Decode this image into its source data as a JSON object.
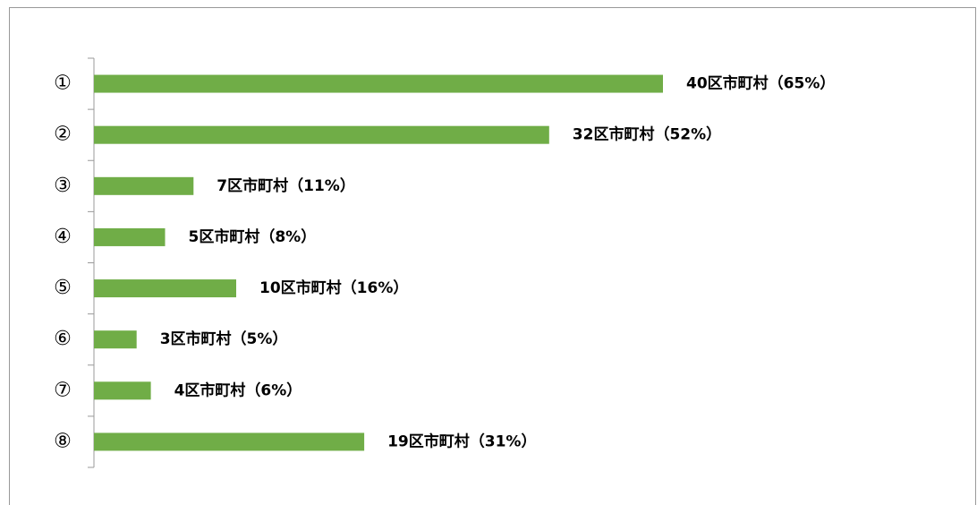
{
  "chart_data": {
    "type": "bar",
    "orientation": "horizontal",
    "categories": [
      "①",
      "②",
      "③",
      "④",
      "⑤",
      "⑥",
      "⑦",
      "⑧"
    ],
    "values": [
      40,
      32,
      7,
      5,
      10,
      3,
      4,
      19
    ],
    "value_labels": [
      "40区市町村（65%）",
      "32区市町村（52%）",
      "7区市町村（11%）",
      "5区市町村（8%）",
      "10区市町村（16%）",
      "3区市町村（5%）",
      "4区市町村（6%）",
      "19区市町村（31%）"
    ],
    "color": "#70ad47"
  }
}
